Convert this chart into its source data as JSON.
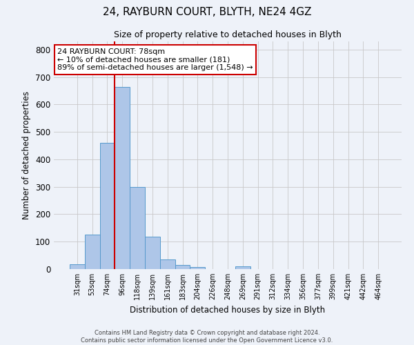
{
  "title": "24, RAYBURN COURT, BLYTH, NE24 4GZ",
  "subtitle": "Size of property relative to detached houses in Blyth",
  "xlabel": "Distribution of detached houses by size in Blyth",
  "ylabel": "Number of detached properties",
  "bar_labels": [
    "31sqm",
    "53sqm",
    "74sqm",
    "96sqm",
    "118sqm",
    "139sqm",
    "161sqm",
    "183sqm",
    "204sqm",
    "226sqm",
    "248sqm",
    "269sqm",
    "291sqm",
    "312sqm",
    "334sqm",
    "356sqm",
    "377sqm",
    "399sqm",
    "421sqm",
    "442sqm",
    "464sqm"
  ],
  "bar_values": [
    18,
    127,
    460,
    665,
    300,
    117,
    35,
    15,
    8,
    0,
    0,
    10,
    0,
    0,
    0,
    0,
    0,
    0,
    0,
    0,
    0
  ],
  "bar_color": "#aec6e8",
  "bar_edge_color": "#5599cc",
  "annotation_title": "24 RAYBURN COURT: 78sqm",
  "annotation_line1": "← 10% of detached houses are smaller (181)",
  "annotation_line2": "89% of semi-detached houses are larger (1,548) →",
  "annotation_box_color": "#ffffff",
  "annotation_box_edge": "#cc0000",
  "vline_color": "#cc0000",
  "ylim": [
    0,
    830
  ],
  "yticks": [
    0,
    100,
    200,
    300,
    400,
    500,
    600,
    700,
    800
  ],
  "footer_line1": "Contains HM Land Registry data © Crown copyright and database right 2024.",
  "footer_line2": "Contains public sector information licensed under the Open Government Licence v3.0.",
  "background_color": "#eef2f9",
  "grid_color": "#c8c8c8"
}
